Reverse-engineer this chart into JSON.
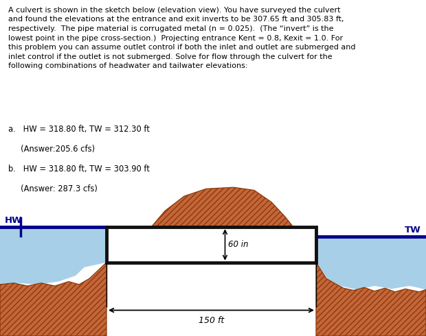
{
  "bg": "#ffffff",
  "water_color": "#a8cfe8",
  "embankment_color": "#c4663a",
  "embankment_edge": "#8B3A0A",
  "water_line_color": "#00008B",
  "pipe_bg": "#ffffff",
  "pipe_border": "#111111",
  "hw_label": "HW",
  "tw_label": "TW",
  "dim_60": "60 in",
  "dim_150": "150 ft",
  "text_main": "A culvert is shown in the sketch below (elevation view). You have surveyed the culvert\nand found the elevations at the entrance and exit inverts to be 307.65 ft and 305.83 ft,\nrespectively.  The pipe material is corrugated metal (n = 0.025).  (The “invert” is the\nlowest point in the pipe cross-section.)  Projecting entrance Kent = 0.8, Kexit = 1.0. For\nthis problem you can assume outlet control if both the inlet and outlet are submerged and\ninlet control if the outlet is not submerged. Solve for flow through the culvert for the\nfollowing combinations of headwater and tailwater elevations:",
  "item_a1": "a.   HW = 318.80 ft, TW = 312.30 ft",
  "item_a2": "     (Answer:205.6 cfs)",
  "item_b1": "b.   HW = 318.80 ft, TW = 303.90 ft",
  "item_b2": "     (Answer: 287.3 cfs)"
}
